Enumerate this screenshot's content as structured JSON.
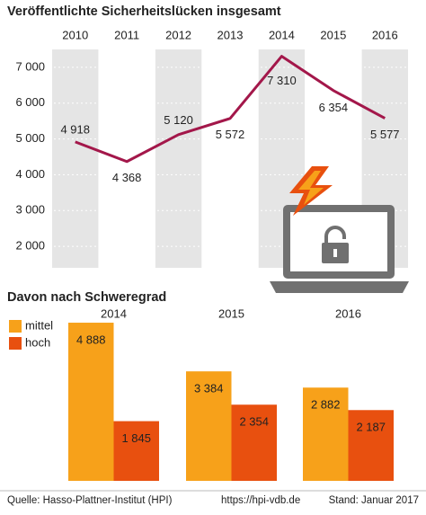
{
  "chart_data": [
    {
      "type": "line",
      "title": "Veröffentlichte Sicherheitslücken insgesamt",
      "categories": [
        "2010",
        "2011",
        "2012",
        "2013",
        "2014",
        "2015",
        "2016"
      ],
      "values": [
        4918,
        4368,
        5120,
        5572,
        7310,
        6354,
        5577
      ],
      "value_labels": [
        "4 918",
        "4 368",
        "5 120",
        "5 572",
        "7 310",
        "6 354",
        "5 577"
      ],
      "color": "#a3174a",
      "ylim": [
        1400,
        7500
      ],
      "yticks": [
        {
          "value": 2000,
          "label": "2 000"
        },
        {
          "value": 3000,
          "label": "3 000"
        },
        {
          "value": 4000,
          "label": "4 000"
        },
        {
          "value": 5000,
          "label": "5 000"
        },
        {
          "value": 6000,
          "label": "6 000"
        },
        {
          "value": 7000,
          "label": "7 000"
        }
      ],
      "grid": true
    },
    {
      "type": "bar",
      "title": "Davon nach Schweregrad",
      "categories": [
        "2014",
        "2015",
        "2016"
      ],
      "series": [
        {
          "name": "mittel",
          "color": "#f7a11a",
          "values": [
            4888,
            3384,
            2882
          ],
          "value_labels": [
            "4 888",
            "3 384",
            "2 882"
          ]
        },
        {
          "name": "hoch",
          "color": "#e8500f",
          "values": [
            1845,
            2354,
            2187
          ],
          "value_labels": [
            "1 845",
            "2 354",
            "2 187"
          ]
        }
      ],
      "ylim": [
        0,
        5000
      ],
      "legend": "top-left"
    }
  ],
  "footer": {
    "source": "Quelle: Hasso-Plattner-Institut (HPI)",
    "url": "https://hpi-vdb.de",
    "date": "Stand: Januar 2017"
  }
}
